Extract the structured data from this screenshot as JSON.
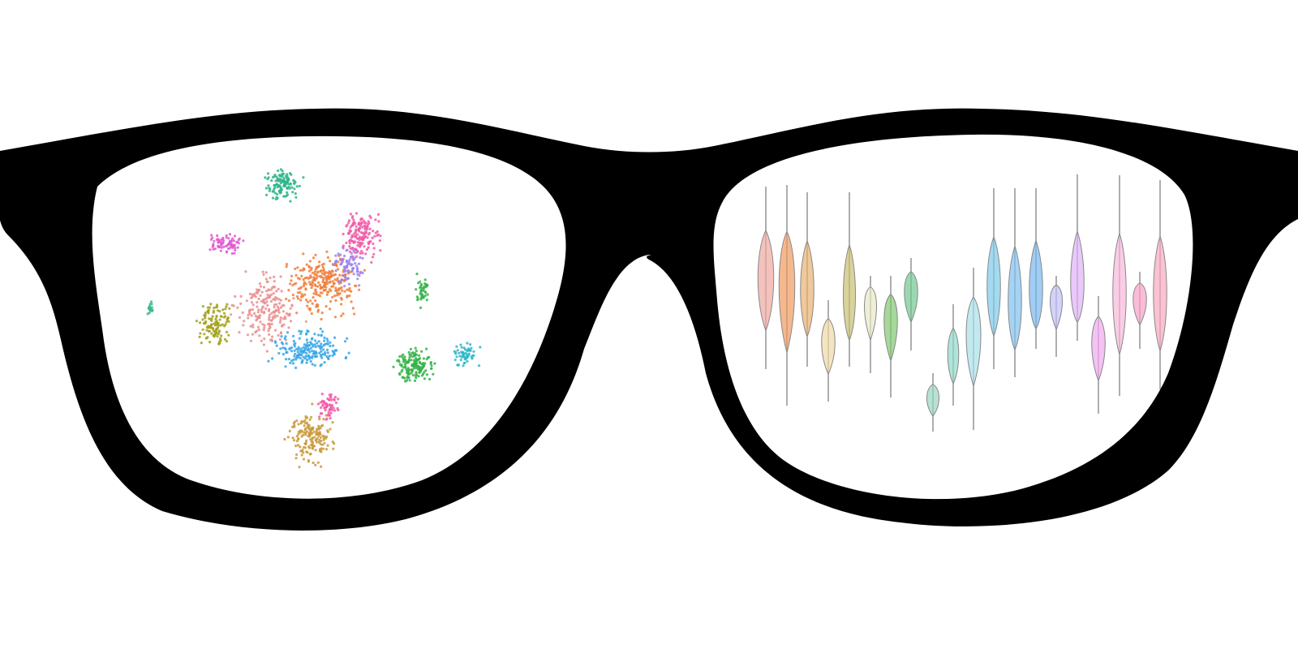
{
  "palette": {
    "frame": "#000000",
    "lens": "#ffffff",
    "background": "#ffffff"
  },
  "left_lens": {
    "content": "scatter-embedding",
    "cluster_colors": [
      "#2fb58a",
      "#e05ad0",
      "#36b34a",
      "#2eb8c9",
      "#f07e3a",
      "#9b82f0",
      "#f25aa8",
      "#35a6e6",
      "#a3a11d",
      "#c99a3a",
      "#e98f8f",
      "#3bb88f"
    ]
  },
  "right_lens": {
    "content": "violin-plots",
    "violin_colors": [
      "#f0a8a0",
      "#ef9a60",
      "#e8b070",
      "#f0d8a8",
      "#c8c070",
      "#e8e8c8",
      "#80c870",
      "#70c890",
      "#9ad4bf",
      "#8ed8c8",
      "#a8e0e8",
      "#7ccbea",
      "#80c0f0",
      "#78b8f0",
      "#c0c0f8",
      "#e0b0f8",
      "#f0a8f0",
      "#f8b8d8",
      "#f8a0c8",
      "#f8a8c0"
    ]
  }
}
